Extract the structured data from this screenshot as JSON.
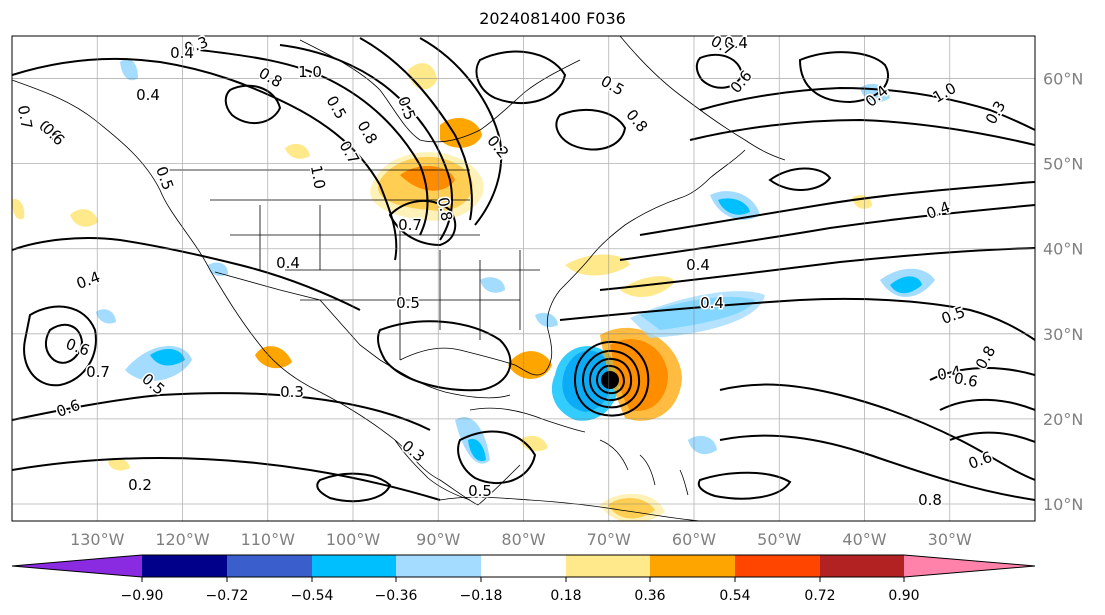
{
  "title": "2024081400 F036",
  "chart_data": {
    "type": "contour-map",
    "title": "2024081400 F036",
    "projection": "plate-carree",
    "lon_range": [
      -140,
      -20
    ],
    "lat_range": [
      8,
      65
    ],
    "lon_ticks": [
      "130°W",
      "120°W",
      "110°W",
      "100°W",
      "90°W",
      "80°W",
      "70°W",
      "60°W",
      "50°W",
      "40°W",
      "30°W"
    ],
    "lat_ticks": [
      "60°N",
      "50°N",
      "40°N",
      "30°N",
      "20°N",
      "10°N"
    ],
    "colorbar": {
      "levels": [
        "−0.90",
        "−0.72",
        "−0.54",
        "−0.36",
        "−0.18",
        "0.18",
        "0.36",
        "0.54",
        "0.72",
        "0.90"
      ],
      "colors": [
        "#8a2be2",
        "#00008b",
        "#3a5fcd",
        "#00bfff",
        "#a3dcff",
        "#ffffff",
        "#ffe98a",
        "#ffa500",
        "#ff4500",
        "#b22222",
        "#ff82ab"
      ],
      "extend": "both"
    },
    "contour_labels": [
      "0.3",
      "0.4",
      "0.8",
      "1.0",
      "0.5",
      "0.6",
      "0.7",
      "0.4",
      "0.6",
      "0.5",
      "0.7",
      "0.8",
      "0.5",
      "1.0",
      "0.8",
      "0.7",
      "0.2",
      "0.5",
      "0.4",
      "0.7",
      "0.6",
      "0.8",
      "1.0",
      "0.4",
      "0.4",
      "0.4",
      "0.6",
      "0.5",
      "0.6",
      "0.7",
      "0.3",
      "0.5",
      "0.4",
      "0.4",
      "0.4",
      "0.5",
      "0.4",
      "0.6",
      "0.8",
      "0.3",
      "0.2",
      "0.8",
      "0.5",
      "0.3",
      "0.6"
    ],
    "shaded_features": [
      {
        "name": "cyclone-core",
        "lon": -69,
        "lat": 24,
        "value_sign": "mixed"
      },
      {
        "name": "great-lakes-dipole",
        "lon": -88,
        "lat": 46,
        "value_sign": "positive"
      },
      {
        "name": "atlantic-negative-band",
        "lon": -60,
        "lat": 33,
        "value_sign": "negative"
      }
    ]
  }
}
